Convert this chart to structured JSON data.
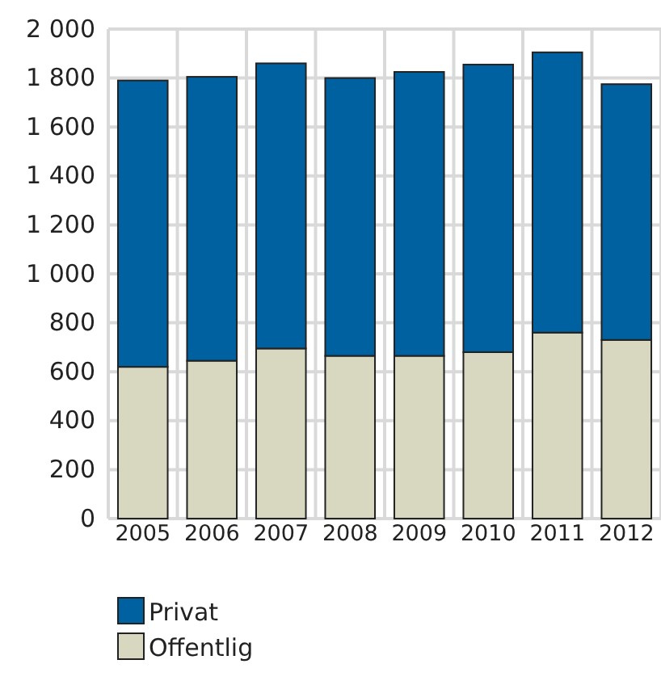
{
  "chart_data": {
    "type": "bar",
    "stacked": true,
    "categories": [
      "2005",
      "2006",
      "2007",
      "2008",
      "2009",
      "2010",
      "2011",
      "2012"
    ],
    "series": [
      {
        "name": "Offentlig",
        "color": "#d8d7bf",
        "values": [
          620,
          645,
          695,
          665,
          665,
          680,
          760,
          730
        ]
      },
      {
        "name": "Privat",
        "color": "#0061a0",
        "values": [
          1170,
          1160,
          1165,
          1135,
          1160,
          1175,
          1145,
          1045
        ]
      }
    ],
    "ylim": [
      0,
      2000
    ],
    "yticks": [
      0,
      200,
      400,
      600,
      800,
      {
        "value": 1000,
        "label": "1 000"
      },
      {
        "value": 1200,
        "label": "1 200"
      },
      {
        "value": 1400,
        "label": "1 400"
      },
      {
        "value": 1600,
        "label": "1 600"
      },
      {
        "value": 1800,
        "label": "1 800"
      },
      {
        "value": 2000,
        "label": "2 000"
      }
    ],
    "grid": true,
    "legend": "bottom left"
  }
}
